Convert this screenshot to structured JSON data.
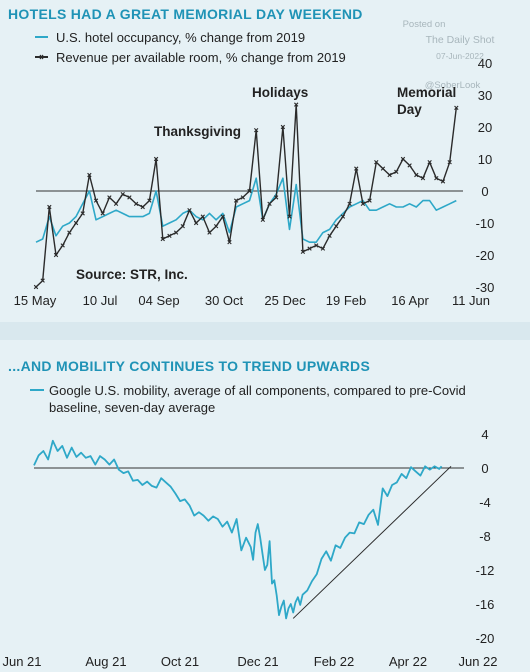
{
  "watermark": {
    "posted_on": "Posted on",
    "source_name": "The Daily Shot",
    "date": "07-Jun-2022",
    "handle": "@SoberLook"
  },
  "chart_data": [
    {
      "type": "line",
      "title": "HOTELS HAD A GREAT MEMORIAL DAY WEEKEND",
      "source": "Source: STR, Inc.",
      "x_ticks": [
        "15 May",
        "10 Jul",
        "04 Sep",
        "30 Oct",
        "25 Dec",
        "19 Feb",
        "16 Apr",
        "11 Jun"
      ],
      "y_ticks": [
        40,
        30,
        20,
        10,
        0,
        -10,
        -20,
        -30
      ],
      "ylim": [
        -30,
        40
      ],
      "y_axis_side": "right",
      "legend": "top-left",
      "annotations": [
        "Thanksgiving",
        "Holidays",
        "Memorial Day"
      ],
      "x_index": "weekly observations starting 15 May 2021 (0 = 15 May 2021)",
      "series": [
        {
          "name": "U.S. hotel occupancy, % change from 2019",
          "color": "#2ea8c8",
          "marker": "none",
          "points": [
            [
              0,
              -16
            ],
            [
              1,
              -15
            ],
            [
              2,
              -8
            ],
            [
              3,
              -14
            ],
            [
              4,
              -11
            ],
            [
              5,
              -10
            ],
            [
              6,
              -8
            ],
            [
              7,
              -4
            ],
            [
              8,
              0
            ],
            [
              9,
              -9
            ],
            [
              10,
              -8
            ],
            [
              11,
              -7
            ],
            [
              12,
              -6
            ],
            [
              13,
              -7
            ],
            [
              14,
              -8
            ],
            [
              15,
              -8
            ],
            [
              16,
              -8
            ],
            [
              17,
              -7
            ],
            [
              18,
              0
            ],
            [
              19,
              -11
            ],
            [
              20,
              -10
            ],
            [
              21,
              -9
            ],
            [
              22,
              -7
            ],
            [
              23,
              -6
            ],
            [
              24,
              -8
            ],
            [
              25,
              -9
            ],
            [
              26,
              -7
            ],
            [
              27,
              -9
            ],
            [
              28,
              -7
            ],
            [
              29,
              -13
            ],
            [
              30,
              -5
            ],
            [
              31,
              -4
            ],
            [
              32,
              -3
            ],
            [
              33,
              4
            ],
            [
              34,
              -9
            ],
            [
              35,
              -4
            ],
            [
              36,
              -1
            ],
            [
              37,
              4
            ],
            [
              38,
              -12
            ],
            [
              39,
              2
            ],
            [
              40,
              -15
            ],
            [
              41,
              -16
            ],
            [
              42,
              -16
            ],
            [
              43,
              -13
            ],
            [
              44,
              -12
            ],
            [
              45,
              -9
            ],
            [
              46,
              -7
            ],
            [
              47,
              -5
            ],
            [
              48,
              -4
            ],
            [
              49,
              -3
            ],
            [
              50,
              -6
            ],
            [
              51,
              -6
            ],
            [
              52,
              -5
            ],
            [
              53,
              -4
            ],
            [
              54,
              -5
            ],
            [
              55,
              -5
            ],
            [
              56,
              -4
            ],
            [
              57,
              -5
            ],
            [
              58,
              -3
            ],
            [
              59,
              -3
            ],
            [
              60,
              -6
            ],
            [
              61,
              -5
            ],
            [
              62,
              -4
            ],
            [
              63,
              -3
            ]
          ]
        },
        {
          "name": "Revenue per available room, % change from 2019",
          "color": "#2b2b2b",
          "marker": "x",
          "points": [
            [
              0,
              -30
            ],
            [
              1,
              -28
            ],
            [
              2,
              -5
            ],
            [
              3,
              -20
            ],
            [
              4,
              -17
            ],
            [
              5,
              -13
            ],
            [
              6,
              -10
            ],
            [
              7,
              -7
            ],
            [
              8,
              5
            ],
            [
              9,
              -3
            ],
            [
              10,
              -7
            ],
            [
              11,
              -2
            ],
            [
              12,
              -4
            ],
            [
              13,
              -1
            ],
            [
              14,
              -2
            ],
            [
              15,
              -4
            ],
            [
              16,
              -5
            ],
            [
              17,
              -3
            ],
            [
              18,
              10
            ],
            [
              19,
              -15
            ],
            [
              20,
              -14
            ],
            [
              21,
              -13
            ],
            [
              22,
              -11
            ],
            [
              23,
              -6
            ],
            [
              24,
              -10
            ],
            [
              25,
              -8
            ],
            [
              26,
              -13
            ],
            [
              27,
              -11
            ],
            [
              28,
              -8
            ],
            [
              29,
              -16
            ],
            [
              30,
              -3
            ],
            [
              31,
              -2
            ],
            [
              32,
              0
            ],
            [
              33,
              19
            ],
            [
              34,
              -9
            ],
            [
              35,
              -4
            ],
            [
              36,
              -2
            ],
            [
              37,
              20
            ],
            [
              38,
              -8
            ],
            [
              39,
              27
            ],
            [
              40,
              -19
            ],
            [
              41,
              -18
            ],
            [
              42,
              -17
            ],
            [
              43,
              -18
            ],
            [
              44,
              -14
            ],
            [
              45,
              -11
            ],
            [
              46,
              -8
            ],
            [
              47,
              -4
            ],
            [
              48,
              7
            ],
            [
              49,
              -4
            ],
            [
              50,
              -3
            ],
            [
              51,
              9
            ],
            [
              52,
              7
            ],
            [
              53,
              5
            ],
            [
              54,
              6
            ],
            [
              55,
              10
            ],
            [
              56,
              8
            ],
            [
              57,
              5
            ],
            [
              58,
              4
            ],
            [
              59,
              9
            ],
            [
              60,
              4
            ],
            [
              61,
              3
            ],
            [
              62,
              9
            ],
            [
              63,
              26
            ]
          ]
        }
      ]
    },
    {
      "type": "line",
      "title": "...AND MOBILITY CONTINUES TO TREND UPWARDS",
      "x_ticks": [
        "Jun 21",
        "Aug 21",
        "Oct 21",
        "Dec 21",
        "Feb 22",
        "Apr 22",
        "Jun 22"
      ],
      "y_ticks": [
        4,
        0,
        -4,
        -8,
        -12,
        -16,
        -20
      ],
      "ylim": [
        -20,
        4
      ],
      "y_axis_side": "right",
      "legend": "top-left",
      "x_index": "days from 1 Jun 2021",
      "series": [
        {
          "name": "Google U.S. mobility, average of all components, compared to pre-Covid baseline, seven-day average",
          "color": "#2ea8c8",
          "points": [
            [
              0,
              0.3
            ],
            [
              4,
              1.5
            ],
            [
              8,
              2.0
            ],
            [
              12,
              1.0
            ],
            [
              16,
              3.2
            ],
            [
              20,
              2.0
            ],
            [
              24,
              2.6
            ],
            [
              28,
              1.2
            ],
            [
              32,
              2.4
            ],
            [
              36,
              1.3
            ],
            [
              40,
              1.8
            ],
            [
              44,
              1.2
            ],
            [
              48,
              1.4
            ],
            [
              52,
              0.4
            ],
            [
              56,
              1.4
            ],
            [
              60,
              1.0
            ],
            [
              64,
              0.4
            ],
            [
              68,
              1.0
            ],
            [
              72,
              -0.2
            ],
            [
              76,
              -0.6
            ],
            [
              80,
              -0.4
            ],
            [
              84,
              -1.5
            ],
            [
              88,
              -1.4
            ],
            [
              92,
              -2.0
            ],
            [
              96,
              -1.6
            ],
            [
              100,
              -2.1
            ],
            [
              104,
              -2.3
            ],
            [
              108,
              -1.2
            ],
            [
              112,
              -1.7
            ],
            [
              116,
              -2.2
            ],
            [
              120,
              -3.0
            ],
            [
              124,
              -3.9
            ],
            [
              128,
              -3.7
            ],
            [
              132,
              -4.4
            ],
            [
              136,
              -5.6
            ],
            [
              140,
              -5.2
            ],
            [
              144,
              -5.6
            ],
            [
              148,
              -6.2
            ],
            [
              152,
              -5.7
            ],
            [
              156,
              -6.0
            ],
            [
              160,
              -6.9
            ],
            [
              164,
              -6.3
            ],
            [
              168,
              -7.6
            ],
            [
              172,
              -6.0
            ],
            [
              176,
              -9.7
            ],
            [
              180,
              -8.2
            ],
            [
              184,
              -9.3
            ],
            [
              186,
              -10.8
            ],
            [
              188,
              -7.6
            ],
            [
              190,
              -6.6
            ],
            [
              192,
              -8.2
            ],
            [
              194,
              -10.1
            ],
            [
              196,
              -12.0
            ],
            [
              198,
              -11.4
            ],
            [
              200,
              -8.6
            ],
            [
              202,
              -13.6
            ],
            [
              204,
              -13.2
            ],
            [
              206,
              -15.0
            ],
            [
              208,
              -17.3
            ],
            [
              210,
              -16.3
            ],
            [
              212,
              -15.6
            ],
            [
              214,
              -17.7
            ],
            [
              216,
              -16.5
            ],
            [
              218,
              -16.0
            ],
            [
              220,
              -17.0
            ],
            [
              222,
              -15.8
            ],
            [
              224,
              -15.2
            ],
            [
              226,
              -16.1
            ],
            [
              228,
              -14.9
            ],
            [
              232,
              -14.4
            ],
            [
              236,
              -13.3
            ],
            [
              240,
              -12.5
            ],
            [
              244,
              -10.7
            ],
            [
              248,
              -9.8
            ],
            [
              252,
              -10.9
            ],
            [
              256,
              -9.1
            ],
            [
              260,
              -9.4
            ],
            [
              264,
              -8.2
            ],
            [
              268,
              -7.6
            ],
            [
              272,
              -7.7
            ],
            [
              276,
              -6.4
            ],
            [
              280,
              -6.6
            ],
            [
              284,
              -5.5
            ],
            [
              288,
              -4.9
            ],
            [
              292,
              -6.7
            ],
            [
              296,
              -2.4
            ],
            [
              300,
              -3.3
            ],
            [
              304,
              -2.0
            ],
            [
              308,
              -1.7
            ],
            [
              312,
              -0.7
            ],
            [
              316,
              -1.2
            ],
            [
              320,
              0.1
            ],
            [
              324,
              -0.4
            ],
            [
              328,
              -0.9
            ],
            [
              332,
              0.2
            ],
            [
              336,
              -0.2
            ],
            [
              340,
              0.2
            ],
            [
              344,
              -0.1
            ],
            [
              346,
              0.2
            ]
          ]
        }
      ],
      "trendline": {
        "from": [
          220,
          -17.7
        ],
        "to": [
          354,
          0.2
        ],
        "color": "#2b2b2b"
      }
    }
  ]
}
